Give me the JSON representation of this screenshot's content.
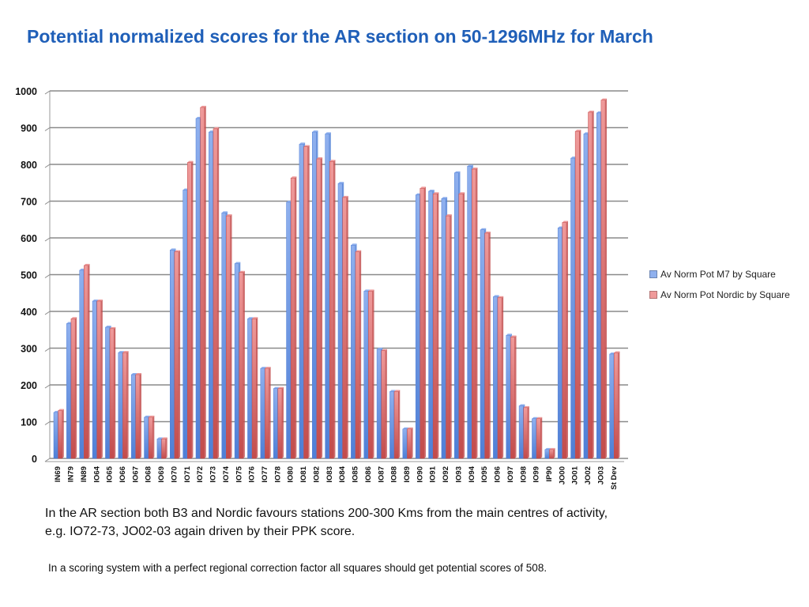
{
  "slide": {
    "title": "Potential normalized scores for the AR section on 50-1296MHz for March",
    "note_line1": "In the AR section both B3 and Nordic favours stations 200-300 Kms from the main centres of activity,",
    "note_line2": " e.g. IO72-73, JO02-03 again driven by their PPK score.",
    "note_footer": "In a scoring system with a perfect regional correction factor all squares should get potential scores of 508."
  },
  "colors": {
    "series_m7": "#8fb0ee",
    "series_m7_dark": "#4f7fd6",
    "series_nordic": "#ef9a9a",
    "series_nordic_dark": "#c24b4b",
    "title": "#1f5fb8",
    "gridline": "#8a8a8a"
  },
  "chart_data": {
    "type": "bar",
    "title": "Potential normalized scores for the AR section on 50-1296MHz for March",
    "xlabel": "",
    "ylabel": "",
    "ylim": [
      0,
      1000
    ],
    "yticks": [
      0,
      100,
      200,
      300,
      400,
      500,
      600,
      700,
      800,
      900,
      1000
    ],
    "grid": true,
    "legend_position": "right",
    "categories": [
      "IN69",
      "IN79",
      "IN89",
      "IO64",
      "IO65",
      "IO66",
      "IO67",
      "IO68",
      "IO69",
      "IO70",
      "IO71",
      "IO72",
      "IO73",
      "IO74",
      "IO75",
      "IO76",
      "IO77",
      "IO78",
      "IO80",
      "IO81",
      "IO82",
      "IO83",
      "IO84",
      "IO85",
      "IO86",
      "IO87",
      "IO88",
      "IO89",
      "IO90",
      "IO91",
      "IO92",
      "IO93",
      "IO94",
      "IO95",
      "IO96",
      "IO97",
      "IO98",
      "IO99",
      "IP90",
      "JO00",
      "JO01",
      "JO02",
      "JO03",
      "St Dev"
    ],
    "series": [
      {
        "name": "Av Norm Pot M7 by Square",
        "values": [
          125,
          367,
          512,
          428,
          357,
          288,
          228,
          112,
          53,
          567,
          730,
          925,
          888,
          668,
          530,
          380,
          245,
          190,
          697,
          855,
          888,
          883,
          748,
          580,
          455,
          297,
          182,
          80,
          717,
          727,
          707,
          777,
          795,
          622,
          440,
          335,
          143,
          108,
          24,
          627,
          817,
          883,
          940,
          284
        ]
      },
      {
        "name": "Av Norm Pot Nordic by Square",
        "values": [
          130,
          380,
          525,
          428,
          353,
          288,
          228,
          112,
          53,
          562,
          805,
          955,
          897,
          660,
          506,
          380,
          245,
          190,
          763,
          848,
          815,
          808,
          710,
          562,
          455,
          293,
          182,
          80,
          735,
          720,
          660,
          720,
          787,
          613,
          437,
          330,
          138,
          108,
          24,
          642,
          890,
          942,
          975,
          287
        ]
      }
    ]
  }
}
